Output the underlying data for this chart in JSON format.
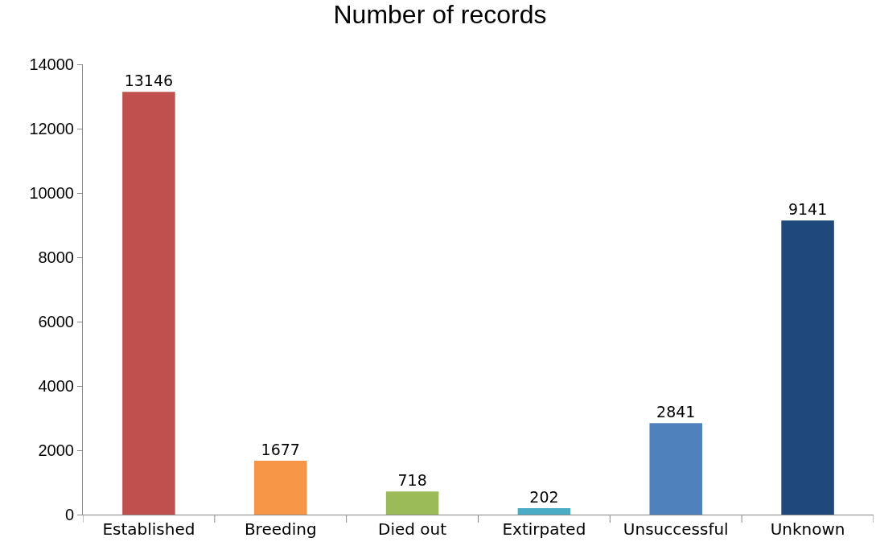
{
  "chart_data": {
    "type": "bar",
    "title": "Number of records",
    "categories": [
      "Established",
      "Breeding",
      "Died out",
      "Extirpated",
      "Unsuccessful",
      "Unknown"
    ],
    "values": [
      13146,
      1677,
      718,
      202,
      2841,
      9141
    ],
    "colors": [
      "#c0504d",
      "#f79646",
      "#9bbb59",
      "#4bacc6",
      "#4f81bd",
      "#1f497d"
    ],
    "ylim": [
      0,
      14000
    ],
    "yticks": [
      0,
      2000,
      4000,
      6000,
      8000,
      10000,
      12000,
      14000
    ],
    "grid": false,
    "data_labels": true
  }
}
